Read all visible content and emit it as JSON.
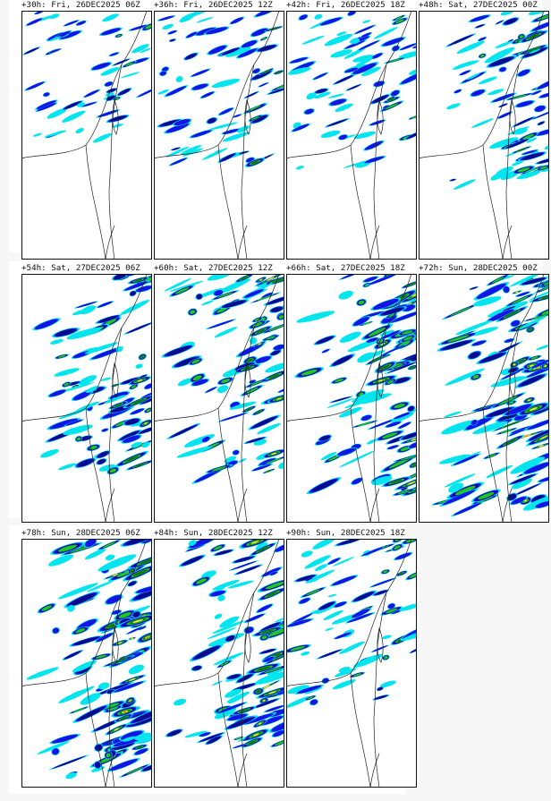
{
  "panels": [
    {
      "label": "+30h: Fri, 26DEC2025 06Z",
      "lead_hours": 30,
      "coverage": 0.15
    },
    {
      "label": "+36h: Fri, 26DEC2025 12Z",
      "lead_hours": 36,
      "coverage": 0.24
    },
    {
      "label": "+42h: Fri, 26DEC2025 18Z",
      "lead_hours": 42,
      "coverage": 0.26
    },
    {
      "label": "+48h: Sat, 27DEC2025 00Z",
      "lead_hours": 48,
      "coverage": 0.32
    },
    {
      "label": "+54h: Sat, 27DEC2025 06Z",
      "lead_hours": 54,
      "coverage": 0.4
    },
    {
      "label": "+60h: Sat, 27DEC2025 12Z",
      "lead_hours": 60,
      "coverage": 0.42
    },
    {
      "label": "+66h: Sat, 27DEC2025 18Z",
      "lead_hours": 66,
      "coverage": 0.48
    },
    {
      "label": "+72h: Sun, 28DEC2025 00Z",
      "lead_hours": 72,
      "coverage": 0.55
    },
    {
      "label": "+78h: Sun, 28DEC2025 06Z",
      "lead_hours": 78,
      "coverage": 0.55
    },
    {
      "label": "+84h: Sun, 28DEC2025 12Z",
      "lead_hours": 84,
      "coverage": 0.45
    },
    {
      "label": "+90h: Sun, 28DEC2025 18Z",
      "lead_hours": 90,
      "coverage": 0.28
    }
  ],
  "palette": {
    "light": "#00e5ee",
    "blue": "#1414e6",
    "dark_blue": "#0a0a8c",
    "green": "#1ec81e",
    "dark_green": "#0a780a",
    "yellow": "#f0f032",
    "orange": "#ff8c00",
    "red": "#ff1e1e"
  }
}
